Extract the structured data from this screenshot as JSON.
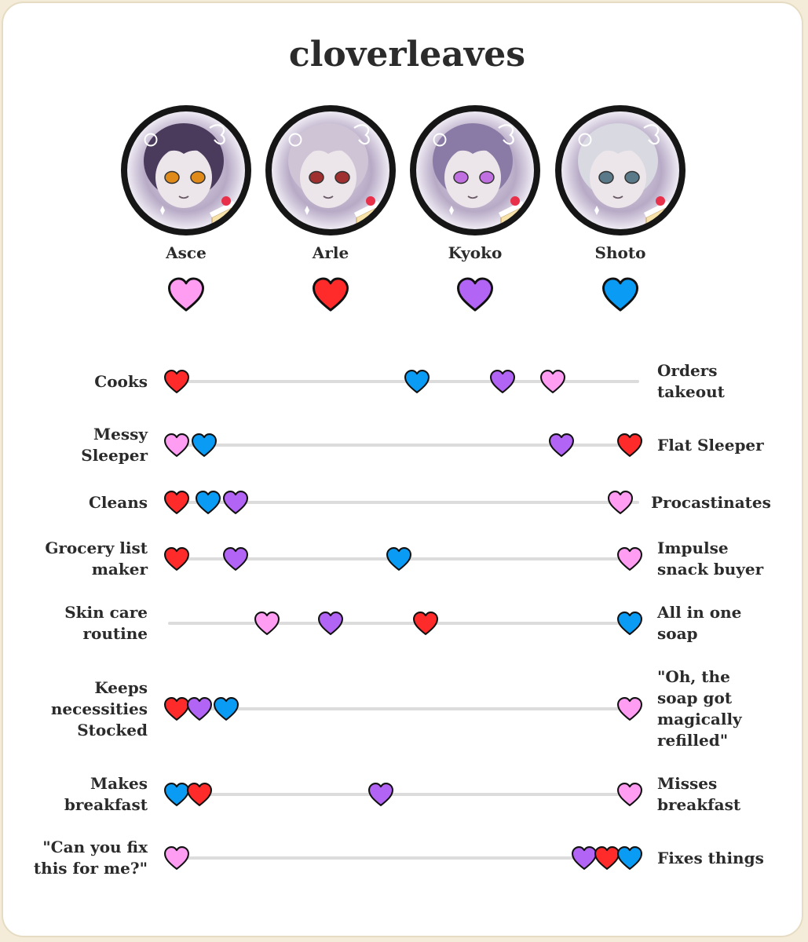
{
  "title": "cloverleaves",
  "people": [
    {
      "name": "Asce",
      "color": "#ff9df2",
      "icon": "heart-icon",
      "hair": "#4a3a5c",
      "eyes": "#e08a1a"
    },
    {
      "name": "Arle",
      "color": "#ff2a2a",
      "icon": "heart-icon",
      "hair": "#cfc4d6",
      "eyes": "#a03030"
    },
    {
      "name": "Kyoko",
      "color": "#b264f5",
      "icon": "heart-icon",
      "hair": "#8a7ba6",
      "eyes": "#c070e0"
    },
    {
      "name": "Shoto",
      "color": "#0a9cf5",
      "icon": "heart-icon",
      "hair": "#d9d9e2",
      "eyes": "#5a7a8a"
    }
  ],
  "scales": [
    {
      "left": [
        "Cooks"
      ],
      "right": [
        "Orders",
        "takeout"
      ],
      "marks": [
        {
          "who": "Arle",
          "pos": 0
        },
        {
          "who": "Shoto",
          "pos": 0.53
        },
        {
          "who": "Kyoko",
          "pos": 0.72
        },
        {
          "who": "Asce",
          "pos": 0.83
        }
      ]
    },
    {
      "left": [
        "Messy",
        "Sleeper"
      ],
      "right": [
        "Flat Sleeper"
      ],
      "marks": [
        {
          "who": "Asce",
          "pos": 0
        },
        {
          "who": "Shoto",
          "pos": 0.06
        },
        {
          "who": "Kyoko",
          "pos": 0.85
        },
        {
          "who": "Arle",
          "pos": 1
        }
      ]
    },
    {
      "left": [
        "Cleans"
      ],
      "right": [
        "Procastinates"
      ],
      "marks": [
        {
          "who": "Arle",
          "pos": 0
        },
        {
          "who": "Shoto",
          "pos": 0.07
        },
        {
          "who": "Kyoko",
          "pos": 0.13
        },
        {
          "who": "Asce",
          "pos": 0.98
        }
      ]
    },
    {
      "left": [
        "Grocery list",
        "maker"
      ],
      "right": [
        "Impulse",
        "snack buyer"
      ],
      "marks": [
        {
          "who": "Arle",
          "pos": 0
        },
        {
          "who": "Kyoko",
          "pos": 0.13
        },
        {
          "who": "Shoto",
          "pos": 0.49
        },
        {
          "who": "Asce",
          "pos": 1
        }
      ]
    },
    {
      "left": [
        "Skin care",
        "routine"
      ],
      "right": [
        "All in one",
        "soap"
      ],
      "marks": [
        {
          "who": "Asce",
          "pos": 0.2
        },
        {
          "who": "Kyoko",
          "pos": 0.34
        },
        {
          "who": "Arle",
          "pos": 0.55
        },
        {
          "who": "Shoto",
          "pos": 1
        }
      ]
    },
    {
      "left": [
        "Keeps",
        "necessities",
        "Stocked"
      ],
      "right": [
        "\"Oh, the",
        "soap got",
        "magically",
        "refilled\""
      ],
      "marks": [
        {
          "who": "Arle",
          "pos": 0
        },
        {
          "who": "Kyoko",
          "pos": 0.05
        },
        {
          "who": "Shoto",
          "pos": 0.11
        },
        {
          "who": "Asce",
          "pos": 1
        }
      ]
    },
    {
      "left": [
        "Makes",
        "breakfast"
      ],
      "right": [
        "Misses",
        "breakfast"
      ],
      "marks": [
        {
          "who": "Shoto",
          "pos": 0
        },
        {
          "who": "Arle",
          "pos": 0.05
        },
        {
          "who": "Kyoko",
          "pos": 0.45
        },
        {
          "who": "Asce",
          "pos": 1
        }
      ]
    },
    {
      "left": [
        "\"Can you fix",
        "this for me?\""
      ],
      "right": [
        "Fixes things"
      ],
      "marks": [
        {
          "who": "Asce",
          "pos": 0
        },
        {
          "who": "Kyoko",
          "pos": 0.9
        },
        {
          "who": "Arle",
          "pos": 0.95
        },
        {
          "who": "Shoto",
          "pos": 1
        }
      ]
    }
  ]
}
